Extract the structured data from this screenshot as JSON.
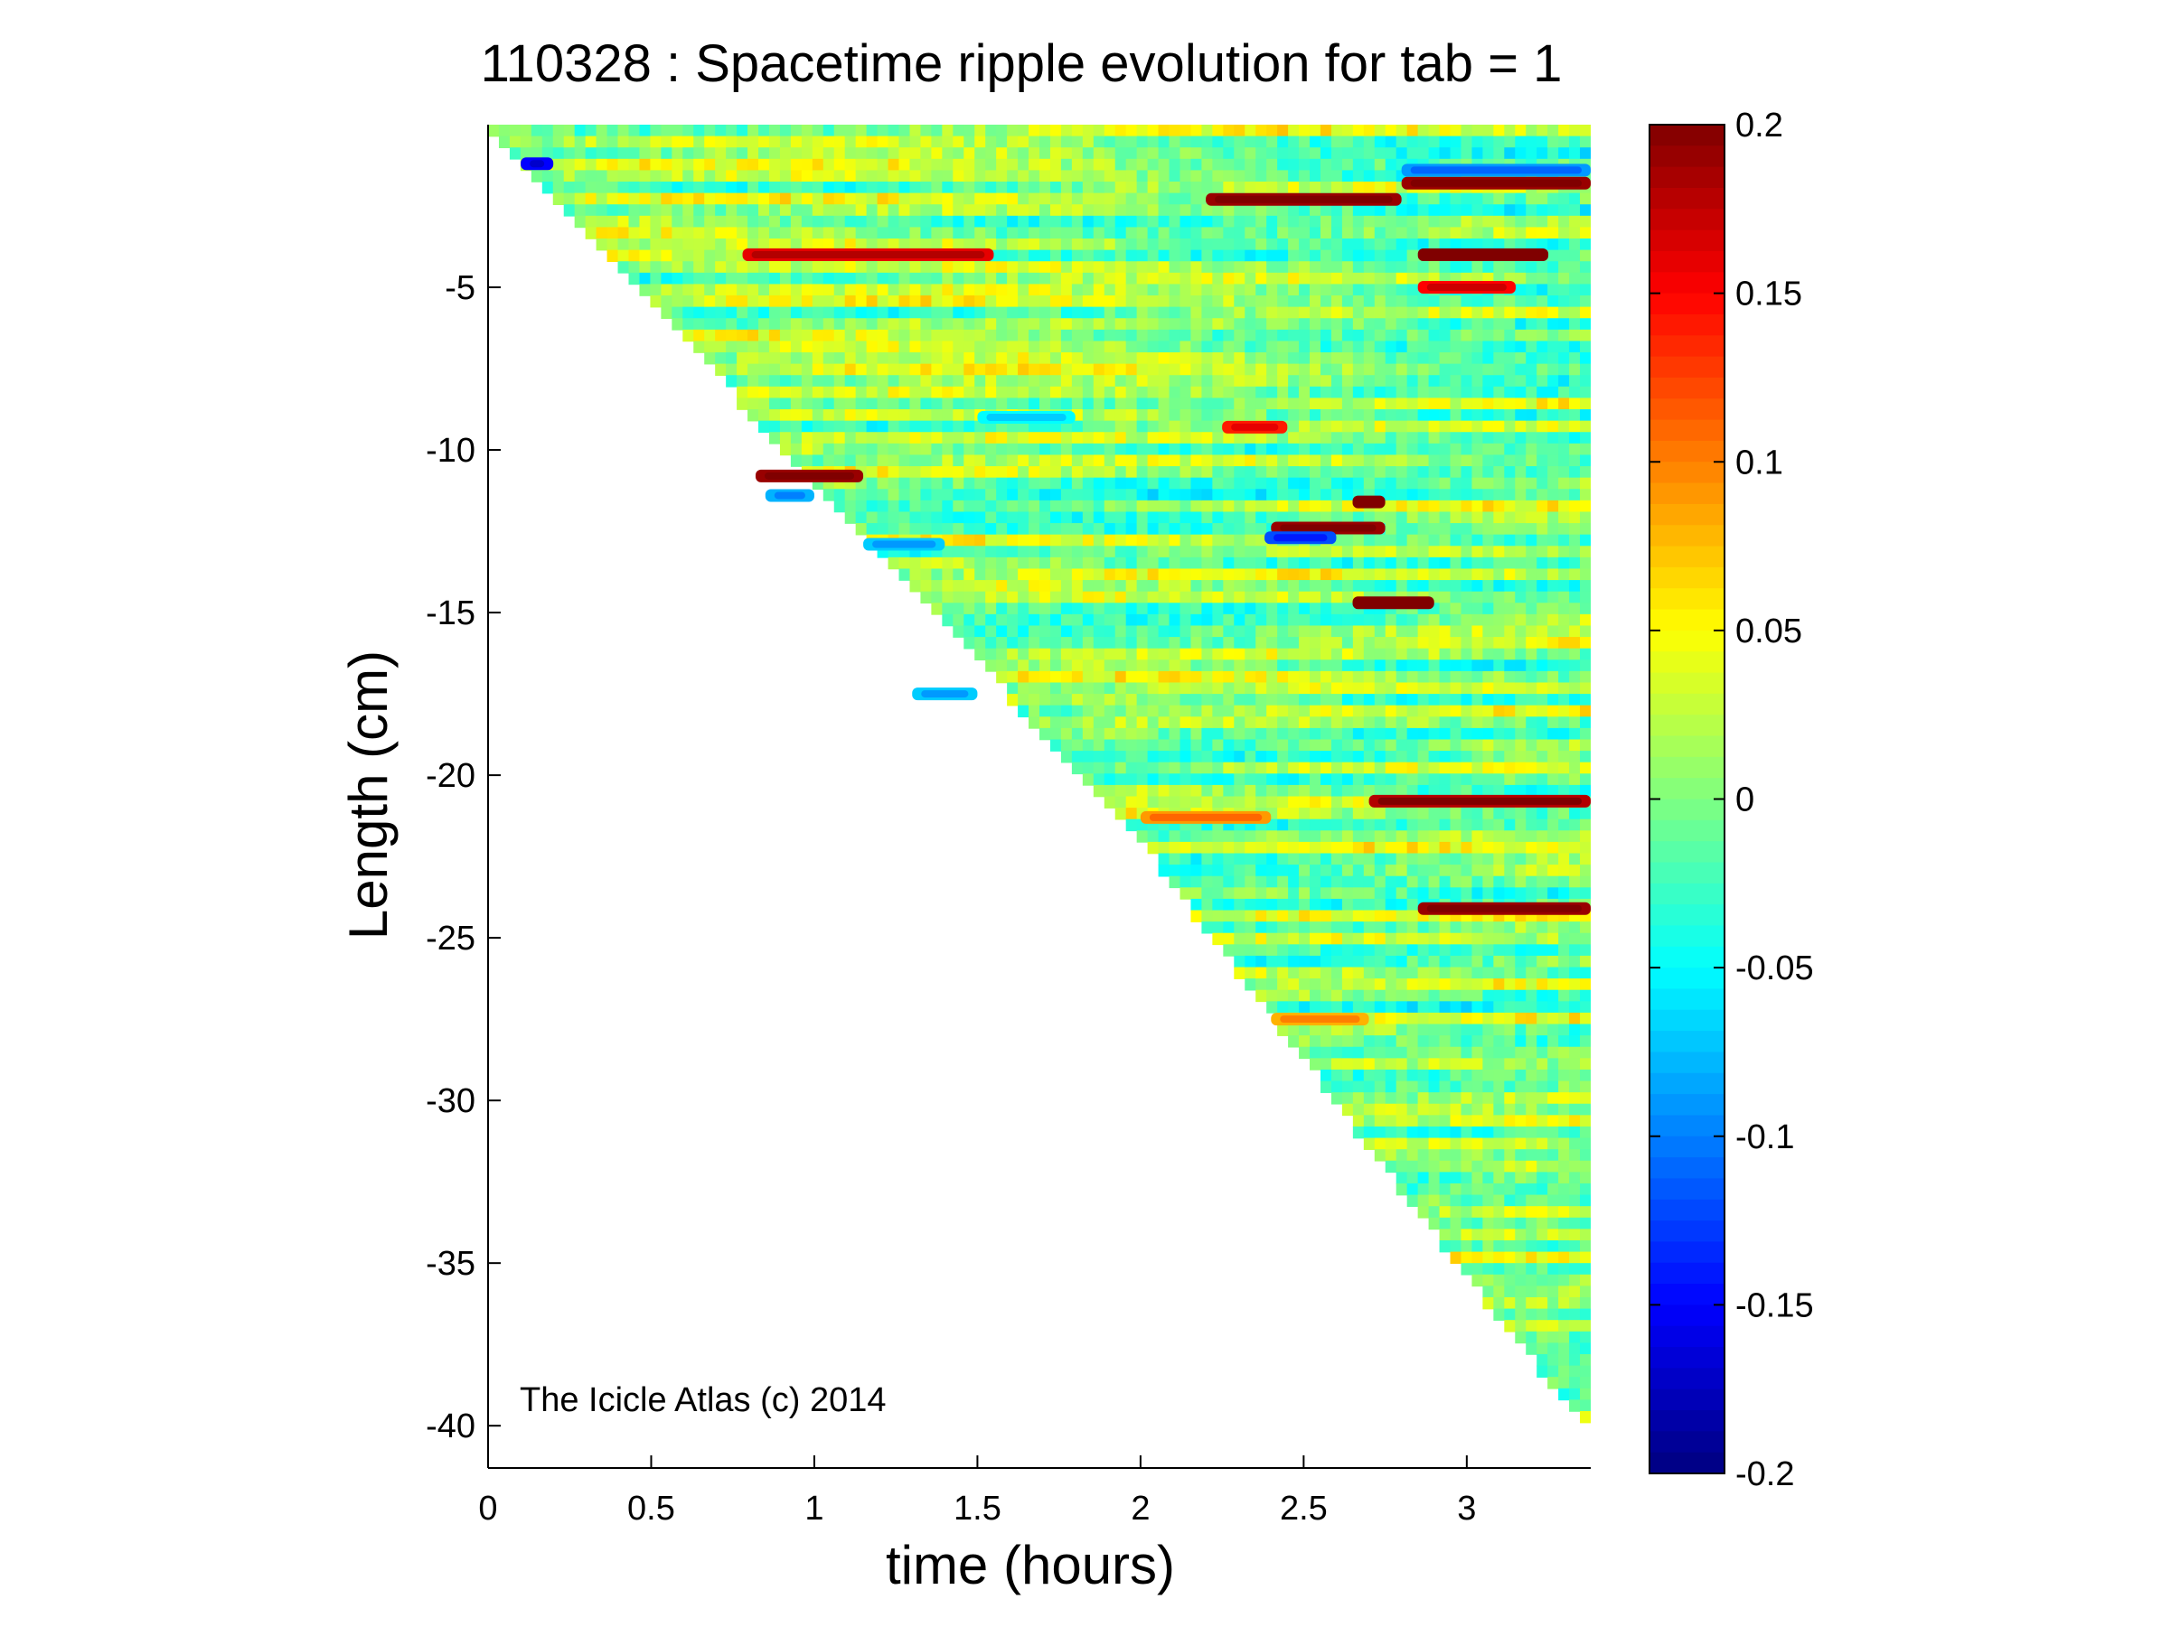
{
  "chart_data": {
    "type": "heatmap",
    "title": "110328 : Spacetime ripple evolution for tab = 1",
    "xlabel": "time (hours)",
    "ylabel": "Length (cm)",
    "xlim": [
      0,
      3.38
    ],
    "ylim": [
      -41.3,
      0
    ],
    "x_ticks": [
      0,
      0.5,
      1,
      1.5,
      2,
      2.5,
      3
    ],
    "x_tick_labels": [
      "0",
      "0.5",
      "1",
      "1.5",
      "2",
      "2.5",
      "3"
    ],
    "y_ticks": [
      -5,
      -10,
      -15,
      -20,
      -25,
      -30,
      -35,
      -40
    ],
    "y_tick_labels": [
      "-5",
      "-10",
      "-15",
      "-20",
      "-25",
      "-30",
      "-35",
      "-40"
    ],
    "colorbar": {
      "colormap": "jet",
      "range": [
        -0.2,
        0.2
      ],
      "ticks": [
        0.2,
        0.15,
        0.1,
        0.05,
        0,
        -0.05,
        -0.1,
        -0.15,
        -0.2
      ],
      "tick_labels": [
        "0.2",
        "0.15",
        "0.1",
        "0.05",
        "0",
        "-0.05",
        "-0.1",
        "-0.15",
        "-0.2"
      ]
    },
    "front": {
      "description_points": [
        [
          0,
          0
        ],
        [
          0.25,
          -2.8
        ],
        [
          1,
          -11
        ],
        [
          2,
          -22
        ],
        [
          3,
          -35.4
        ],
        [
          3.38,
          -40.2
        ]
      ]
    },
    "features": [
      {
        "t_start": 0.82,
        "t_end": 1.15,
        "y": -10.8,
        "value": 0.19
      },
      {
        "t_start": 0.85,
        "t_end": 1.0,
        "y": -11.4,
        "value": -0.08
      },
      {
        "t_start": 0.78,
        "t_end": 1.55,
        "y": -4.0,
        "value": 0.16
      },
      {
        "t_start": 2.2,
        "t_end": 2.8,
        "y": -2.3,
        "value": 0.19
      },
      {
        "t_start": 2.8,
        "t_end": 3.38,
        "y": -1.8,
        "value": 0.19
      },
      {
        "t_start": 2.8,
        "t_end": 3.38,
        "y": -1.4,
        "value": -0.09
      },
      {
        "t_start": 2.85,
        "t_end": 3.25,
        "y": -4.0,
        "value": 0.2
      },
      {
        "t_start": 2.85,
        "t_end": 3.15,
        "y": -5.0,
        "value": 0.15
      },
      {
        "t_start": 2.4,
        "t_end": 2.75,
        "y": -12.4,
        "value": 0.19
      },
      {
        "t_start": 2.38,
        "t_end": 2.6,
        "y": -12.7,
        "value": -0.12
      },
      {
        "t_start": 2.25,
        "t_end": 2.45,
        "y": -9.3,
        "value": 0.14
      },
      {
        "t_start": 2.65,
        "t_end": 2.75,
        "y": -11.6,
        "value": 0.2
      },
      {
        "t_start": 2.65,
        "t_end": 2.9,
        "y": -14.7,
        "value": 0.2
      },
      {
        "t_start": 2.7,
        "t_end": 3.38,
        "y": -20.8,
        "value": 0.18
      },
      {
        "t_start": 2.85,
        "t_end": 3.38,
        "y": -24.1,
        "value": 0.19
      },
      {
        "t_start": 1.3,
        "t_end": 1.5,
        "y": -17.5,
        "value": -0.07
      },
      {
        "t_start": 0.1,
        "t_end": 0.2,
        "y": -1.2,
        "value": -0.15
      },
      {
        "t_start": 1.5,
        "t_end": 1.8,
        "y": -9.0,
        "value": -0.05
      },
      {
        "t_start": 1.15,
        "t_end": 1.4,
        "y": -12.9,
        "value": -0.07
      },
      {
        "t_start": 2.0,
        "t_end": 2.4,
        "y": -21.3,
        "value": 0.09
      },
      {
        "t_start": 2.4,
        "t_end": 2.7,
        "y": -27.5,
        "value": 0.08
      }
    ],
    "annotation": "The Icicle Atlas (c) 2014"
  }
}
